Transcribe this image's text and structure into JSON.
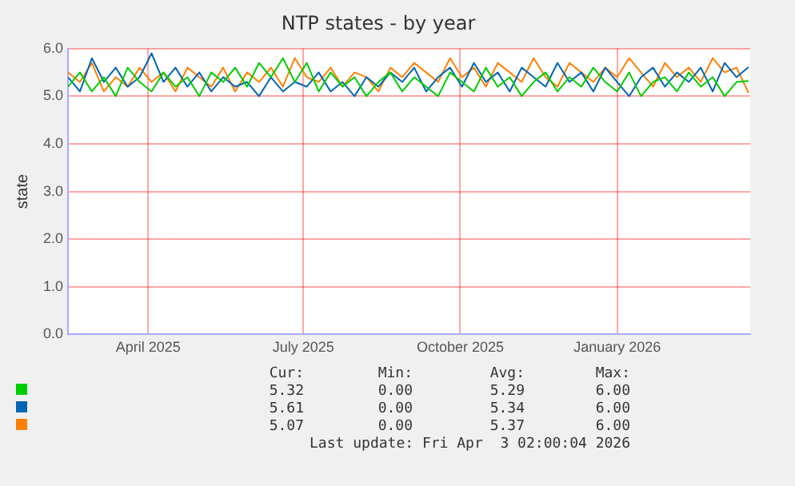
{
  "chart_data": {
    "type": "line",
    "title": "NTP states - by year",
    "ylabel": "state",
    "x": [
      "2025-02-27",
      "2025-03-06",
      "2025-03-13",
      "2025-03-20",
      "2025-03-27",
      "2025-04-03",
      "2025-04-10",
      "2025-04-17",
      "2025-04-24",
      "2025-05-01",
      "2025-05-08",
      "2025-05-15",
      "2025-05-22",
      "2025-05-29",
      "2025-06-05",
      "2025-06-12",
      "2025-06-19",
      "2025-06-26",
      "2025-07-03",
      "2025-07-10",
      "2025-07-17",
      "2025-07-24",
      "2025-07-31",
      "2025-08-07",
      "2025-08-14",
      "2025-08-21",
      "2025-08-28",
      "2025-09-04",
      "2025-09-11",
      "2025-09-18",
      "2025-09-25",
      "2025-10-02",
      "2025-10-09",
      "2025-10-16",
      "2025-10-23",
      "2025-10-30",
      "2025-11-06",
      "2025-11-13",
      "2025-11-20",
      "2025-11-27",
      "2025-12-04",
      "2025-12-11",
      "2025-12-18",
      "2025-12-25",
      "2026-01-01",
      "2026-01-08",
      "2026-01-15",
      "2026-01-22",
      "2026-01-29",
      "2026-02-05",
      "2026-02-12",
      "2026-02-19",
      "2026-02-26",
      "2026-03-05",
      "2026-03-12",
      "2026-03-19",
      "2026-03-26",
      "2026-04-02"
    ],
    "series": [
      {
        "color": "#00cc00",
        "values": [
          5.2,
          5.5,
          5.1,
          5.4,
          5.0,
          5.6,
          5.3,
          5.1,
          5.5,
          5.2,
          5.4,
          5.0,
          5.5,
          5.3,
          5.6,
          5.2,
          5.7,
          5.4,
          5.8,
          5.3,
          5.7,
          5.1,
          5.5,
          5.2,
          5.4,
          5.0,
          5.3,
          5.5,
          5.1,
          5.4,
          5.2,
          5.0,
          5.5,
          5.3,
          5.1,
          5.6,
          5.2,
          5.4,
          5.0,
          5.3,
          5.5,
          5.1,
          5.4,
          5.2,
          5.6,
          5.3,
          5.1,
          5.5,
          5.0,
          5.3,
          5.4,
          5.1,
          5.5,
          5.2,
          5.4,
          5.0,
          5.3,
          5.32
        ]
      },
      {
        "color": "#0066b3",
        "values": [
          5.4,
          5.1,
          5.8,
          5.3,
          5.6,
          5.2,
          5.4,
          5.9,
          5.3,
          5.6,
          5.2,
          5.5,
          5.1,
          5.4,
          5.2,
          5.3,
          5.0,
          5.4,
          5.1,
          5.3,
          5.2,
          5.5,
          5.1,
          5.3,
          5.0,
          5.4,
          5.2,
          5.5,
          5.3,
          5.6,
          5.1,
          5.4,
          5.6,
          5.2,
          5.7,
          5.3,
          5.5,
          5.1,
          5.6,
          5.4,
          5.2,
          5.7,
          5.3,
          5.5,
          5.1,
          5.6,
          5.3,
          5.0,
          5.4,
          5.6,
          5.2,
          5.5,
          5.3,
          5.6,
          5.1,
          5.7,
          5.4,
          5.61
        ]
      },
      {
        "color": "#ff8000",
        "values": [
          5.5,
          5.3,
          5.7,
          5.1,
          5.4,
          5.2,
          5.6,
          5.3,
          5.5,
          5.1,
          5.6,
          5.4,
          5.2,
          5.6,
          5.1,
          5.5,
          5.3,
          5.6,
          5.2,
          5.8,
          5.4,
          5.3,
          5.6,
          5.2,
          5.5,
          5.4,
          5.1,
          5.6,
          5.4,
          5.7,
          5.5,
          5.3,
          5.8,
          5.4,
          5.6,
          5.2,
          5.7,
          5.5,
          5.3,
          5.8,
          5.4,
          5.2,
          5.7,
          5.5,
          5.3,
          5.6,
          5.4,
          5.8,
          5.5,
          5.2,
          5.7,
          5.4,
          5.6,
          5.3,
          5.8,
          5.5,
          5.6,
          5.07
        ]
      }
    ],
    "xlim": [
      "2025-02-27",
      "2026-04-03"
    ],
    "xticks": [
      {
        "value": "2025-04-15",
        "label": "April 2025"
      },
      {
        "value": "2025-07-15",
        "label": "July 2025"
      },
      {
        "value": "2025-10-15",
        "label": "October 2025"
      },
      {
        "value": "2026-01-15",
        "label": "January 2026"
      }
    ],
    "ylim": [
      0,
      6
    ],
    "yticks": [
      {
        "value": 0,
        "label": "0.0"
      },
      {
        "value": 1,
        "label": "1.0"
      },
      {
        "value": 2,
        "label": "2.0"
      },
      {
        "value": 3,
        "label": "3.0"
      },
      {
        "value": 4,
        "label": "4.0"
      },
      {
        "value": 5,
        "label": "5.0"
      },
      {
        "value": 6,
        "label": "6.0"
      }
    ],
    "grid": true,
    "marker": "none",
    "line_style": "solid",
    "annotations": [
      "Cur:",
      "Min:",
      "Avg:",
      "Max:",
      "5.32",
      "0.00",
      "5.29",
      "6.00",
      "5.61",
      "0.00",
      "5.34",
      "6.00",
      "5.07",
      "0.00",
      "5.37",
      "6.00",
      "Last update: Fri Apr  3 02:00:04 2026"
    ]
  }
}
